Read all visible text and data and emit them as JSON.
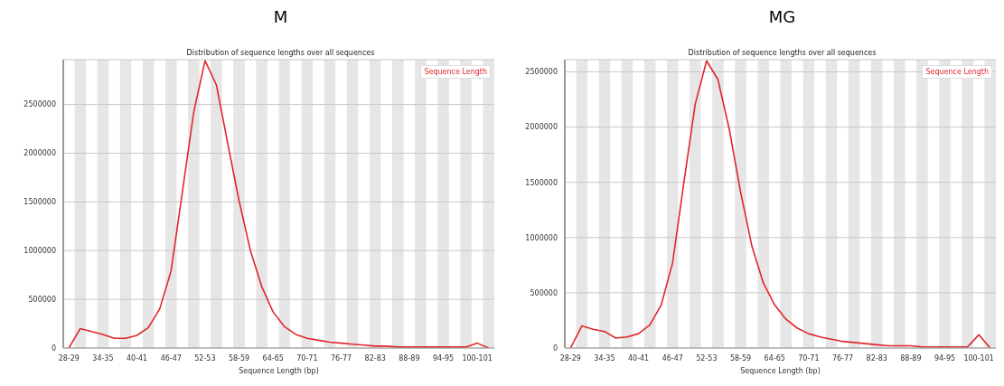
{
  "chart_data": [
    {
      "type": "line",
      "title": "M",
      "subtitle": "Distribution of sequence lengths over all sequences",
      "xlabel": "Sequence Length (bp)",
      "categories": [
        "28-29",
        null,
        null,
        "34-35",
        null,
        null,
        "40-41",
        null,
        null,
        "46-47",
        null,
        null,
        "52-53",
        null,
        null,
        "58-59",
        null,
        null,
        "64-65",
        null,
        null,
        "70-71",
        null,
        null,
        "76-77",
        null,
        null,
        "82-83",
        null,
        null,
        "88-89",
        null,
        null,
        "94-95",
        null,
        null,
        "100-101",
        null
      ],
      "series": [
        {
          "name": "Sequence Length",
          "color": "#e0262b",
          "values": [
            0,
            200000,
            170000,
            140000,
            100000,
            100000,
            130000,
            210000,
            400000,
            790000,
            1600000,
            2420000,
            2950000,
            2700000,
            2100000,
            1510000,
            1000000,
            630000,
            370000,
            220000,
            140000,
            100000,
            80000,
            60000,
            50000,
            40000,
            30000,
            20000,
            20000,
            10000,
            10000,
            10000,
            10000,
            10000,
            10000,
            10000,
            50000,
            0
          ]
        }
      ],
      "ylim": [
        0,
        2960000
      ],
      "yticks": [
        0,
        500000,
        1000000,
        1500000,
        2000000,
        2500000
      ],
      "grid": "y",
      "legend": "top right",
      "marker": "none"
    },
    {
      "type": "line",
      "title": "MG",
      "subtitle": "Distribution of sequence lengths over all sequences",
      "xlabel": "Sequence Length (bp)",
      "categories": [
        "28-29",
        null,
        null,
        "34-35",
        null,
        null,
        "40-41",
        null,
        null,
        "46-47",
        null,
        null,
        "52-53",
        null,
        null,
        "58-59",
        null,
        null,
        "64-65",
        null,
        null,
        "70-71",
        null,
        null,
        "76-77",
        null,
        null,
        "82-83",
        null,
        null,
        "88-89",
        null,
        null,
        "94-95",
        null,
        null,
        "100-101",
        null
      ],
      "series": [
        {
          "name": "Sequence Length",
          "color": "#e0262b",
          "values": [
            0,
            200000,
            170000,
            150000,
            90000,
            100000,
            130000,
            210000,
            390000,
            770000,
            1500000,
            2210000,
            2600000,
            2430000,
            1980000,
            1410000,
            920000,
            590000,
            390000,
            260000,
            180000,
            130000,
            100000,
            80000,
            60000,
            50000,
            40000,
            30000,
            20000,
            20000,
            20000,
            10000,
            10000,
            10000,
            10000,
            10000,
            120000,
            0
          ]
        }
      ],
      "ylim": [
        0,
        2610000
      ],
      "yticks": [
        0,
        500000,
        1000000,
        1500000,
        2000000,
        2500000
      ],
      "grid": "y",
      "legend": "top right",
      "marker": "none"
    }
  ]
}
